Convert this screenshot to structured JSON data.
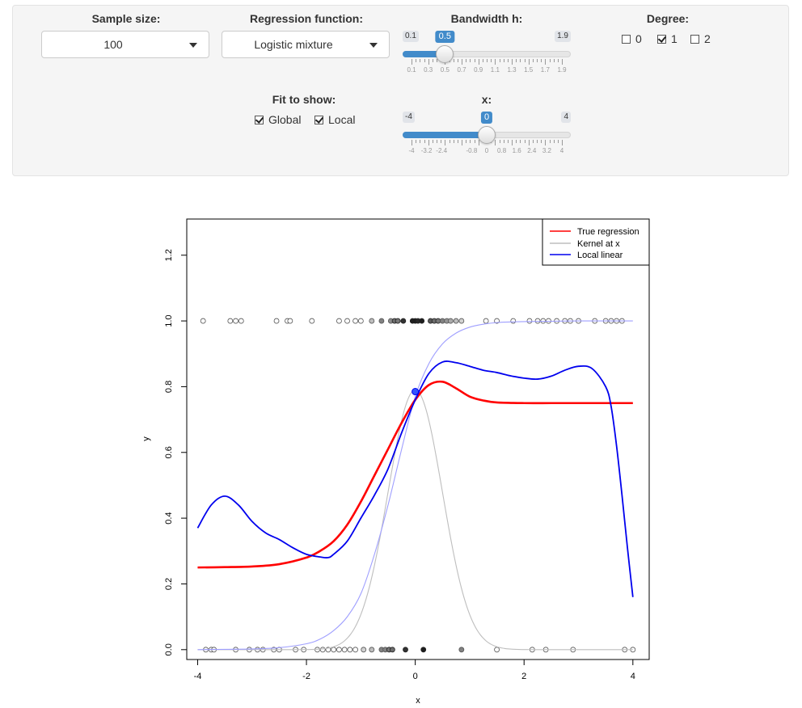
{
  "controls": {
    "sample_size": {
      "label": "Sample size:",
      "value": "100"
    },
    "regression_function": {
      "label": "Regression function:",
      "value": "Logistic mixture"
    },
    "bandwidth": {
      "label": "Bandwidth h:",
      "min": 0.1,
      "max": 1.9,
      "value": 0.5,
      "min_label": "0.1",
      "max_label": "1.9",
      "value_label": "0.5",
      "tick_labels": [
        "0.1",
        "0.3",
        "0.5",
        "0.7",
        "0.9",
        "1.1",
        "1.3",
        "1.5",
        "1.7",
        "1.9"
      ]
    },
    "degree": {
      "label": "Degree:",
      "options": [
        {
          "label": "0",
          "checked": false
        },
        {
          "label": "1",
          "checked": true
        },
        {
          "label": "2",
          "checked": false
        }
      ]
    },
    "fit_to_show": {
      "label": "Fit to show:",
      "options": [
        {
          "label": "Global",
          "checked": true
        },
        {
          "label": "Local",
          "checked": true
        }
      ]
    },
    "x_slider": {
      "label": "x:",
      "min": -4,
      "max": 4,
      "value": 0,
      "min_label": "-4",
      "max_label": "4",
      "value_label": "0",
      "tick_labels": [
        "-4",
        "-3.2",
        "-2.4",
        "-0.8",
        "0",
        "0.8",
        "1.6",
        "2.4",
        "3.2",
        "4"
      ]
    }
  },
  "chart_data": {
    "type": "line",
    "xlabel": "x",
    "ylabel": "y",
    "xlim": [
      -4.2,
      4.3
    ],
    "ylim": [
      -0.03,
      1.31
    ],
    "xticks": [
      "-4",
      "-2",
      "0",
      "2",
      "4"
    ],
    "yticks": [
      "0.0",
      "0.2",
      "0.4",
      "0.6",
      "0.8",
      "1.0",
      "1.2"
    ],
    "legend": {
      "position": "top-right",
      "entries": [
        {
          "label": "True regression",
          "color": "#ff0000"
        },
        {
          "label": "Kernel at x",
          "color": "#bebebe"
        },
        {
          "label": "Local linear",
          "color": "#0000ee"
        }
      ]
    },
    "series": [
      {
        "name": "True regression",
        "color": "#ff0000",
        "x": [
          -4,
          -3.5,
          -3,
          -2.5,
          -2,
          -1.75,
          -1.5,
          -1.25,
          -1,
          -0.75,
          -0.5,
          -0.25,
          0,
          0.25,
          0.5,
          0.75,
          1,
          1.25,
          1.5,
          2,
          2.5,
          3,
          3.5,
          4
        ],
        "y": [
          0.25,
          0.251,
          0.253,
          0.26,
          0.28,
          0.3,
          0.33,
          0.38,
          0.45,
          0.53,
          0.61,
          0.69,
          0.76,
          0.805,
          0.815,
          0.795,
          0.77,
          0.758,
          0.752,
          0.75,
          0.75,
          0.75,
          0.75,
          0.75
        ]
      },
      {
        "name": "Local linear",
        "color": "#0000ee",
        "x": [
          -4,
          -3.75,
          -3.5,
          -3.25,
          -3,
          -2.75,
          -2.5,
          -2.25,
          -2,
          -1.75,
          -1.6,
          -1.5,
          -1.25,
          -1,
          -0.75,
          -0.5,
          -0.25,
          0,
          0.25,
          0.5,
          0.75,
          1,
          1.25,
          1.5,
          1.75,
          2,
          2.25,
          2.5,
          2.75,
          3,
          3.25,
          3.5,
          3.6,
          3.7,
          3.8,
          3.9,
          4
        ],
        "y": [
          0.37,
          0.44,
          0.467,
          0.44,
          0.39,
          0.355,
          0.335,
          0.31,
          0.29,
          0.282,
          0.28,
          0.29,
          0.33,
          0.4,
          0.47,
          0.55,
          0.66,
          0.76,
          0.84,
          0.875,
          0.873,
          0.862,
          0.85,
          0.843,
          0.833,
          0.826,
          0.823,
          0.832,
          0.85,
          0.862,
          0.855,
          0.8,
          0.74,
          0.62,
          0.47,
          0.31,
          0.16
        ]
      },
      {
        "name": "Global logistic",
        "color": "#9f9fff",
        "x": [
          -4,
          -3.5,
          -3,
          -2.5,
          -2,
          -1.75,
          -1.5,
          -1.25,
          -1,
          -0.75,
          -0.5,
          -0.25,
          0,
          0.25,
          0.5,
          0.75,
          1,
          1.25,
          1.5,
          2,
          2.5,
          3,
          3.5,
          4
        ],
        "y": [
          0.0,
          0.001,
          0.002,
          0.006,
          0.018,
          0.032,
          0.058,
          0.1,
          0.17,
          0.29,
          0.44,
          0.61,
          0.77,
          0.87,
          0.93,
          0.963,
          0.981,
          0.99,
          0.995,
          0.998,
          0.999,
          1.0,
          1.0,
          1.0
        ]
      },
      {
        "name": "Kernel at x",
        "color": "#bebebe",
        "type": "gaussian",
        "center": 0,
        "bandwidth": 0.5,
        "peak": 0.79
      }
    ],
    "current_point": {
      "x": 0,
      "y": 0.785
    },
    "points_y1": [
      {
        "x": -3.9,
        "g": 0
      },
      {
        "x": -3.4,
        "g": 0
      },
      {
        "x": -3.3,
        "g": 0
      },
      {
        "x": -3.2,
        "g": 0
      },
      {
        "x": -2.55,
        "g": 0
      },
      {
        "x": -2.35,
        "g": 0
      },
      {
        "x": -2.3,
        "g": 0
      },
      {
        "x": -1.9,
        "g": 0
      },
      {
        "x": -1.4,
        "g": 0
      },
      {
        "x": -1.25,
        "g": 0
      },
      {
        "x": -1.1,
        "g": 0
      },
      {
        "x": -1.0,
        "g": 0
      },
      {
        "x": -0.8,
        "g": 0.2
      },
      {
        "x": -0.62,
        "g": 0.5
      },
      {
        "x": -0.45,
        "g": 0.45
      },
      {
        "x": -0.38,
        "g": 0.6
      },
      {
        "x": -0.32,
        "g": 0.55
      },
      {
        "x": -0.22,
        "g": 0.9
      },
      {
        "x": -0.05,
        "g": 1
      },
      {
        "x": 0,
        "g": 1
      },
      {
        "x": 0.05,
        "g": 0.95
      },
      {
        "x": 0.12,
        "g": 1
      },
      {
        "x": 0.28,
        "g": 0.7
      },
      {
        "x": 0.35,
        "g": 0.6
      },
      {
        "x": 0.42,
        "g": 0.55
      },
      {
        "x": 0.5,
        "g": 0.5
      },
      {
        "x": 0.58,
        "g": 0.4
      },
      {
        "x": 0.65,
        "g": 0.3
      },
      {
        "x": 0.75,
        "g": 0.2
      },
      {
        "x": 0.85,
        "g": 0.1
      },
      {
        "x": 1.3,
        "g": 0
      },
      {
        "x": 1.5,
        "g": 0
      },
      {
        "x": 1.8,
        "g": 0
      },
      {
        "x": 2.1,
        "g": 0
      },
      {
        "x": 2.25,
        "g": 0
      },
      {
        "x": 2.35,
        "g": 0
      },
      {
        "x": 2.45,
        "g": 0
      },
      {
        "x": 2.6,
        "g": 0
      },
      {
        "x": 2.75,
        "g": 0
      },
      {
        "x": 2.85,
        "g": 0
      },
      {
        "x": 3.0,
        "g": 0
      },
      {
        "x": 3.3,
        "g": 0
      },
      {
        "x": 3.5,
        "g": 0
      },
      {
        "x": 3.6,
        "g": 0
      },
      {
        "x": 3.7,
        "g": 0
      },
      {
        "x": 3.8,
        "g": 0
      }
    ],
    "points_y0": [
      {
        "x": -3.85,
        "g": 0
      },
      {
        "x": -3.75,
        "g": 0
      },
      {
        "x": -3.7,
        "g": 0
      },
      {
        "x": -3.3,
        "g": 0
      },
      {
        "x": -3.05,
        "g": 0
      },
      {
        "x": -2.9,
        "g": 0
      },
      {
        "x": -2.8,
        "g": 0
      },
      {
        "x": -2.6,
        "g": 0
      },
      {
        "x": -2.5,
        "g": 0
      },
      {
        "x": -2.2,
        "g": 0
      },
      {
        "x": -2.05,
        "g": 0
      },
      {
        "x": -1.8,
        "g": 0
      },
      {
        "x": -1.7,
        "g": 0
      },
      {
        "x": -1.6,
        "g": 0
      },
      {
        "x": -1.5,
        "g": 0
      },
      {
        "x": -1.4,
        "g": 0
      },
      {
        "x": -1.3,
        "g": 0
      },
      {
        "x": -1.2,
        "g": 0
      },
      {
        "x": -1.1,
        "g": 0
      },
      {
        "x": -0.95,
        "g": 0.1
      },
      {
        "x": -0.8,
        "g": 0.2
      },
      {
        "x": -0.62,
        "g": 0.5
      },
      {
        "x": -0.55,
        "g": 0.5
      },
      {
        "x": -0.48,
        "g": 0.55
      },
      {
        "x": -0.42,
        "g": 0.6
      },
      {
        "x": -0.18,
        "g": 0.9
      },
      {
        "x": 0.15,
        "g": 1
      },
      {
        "x": 0.85,
        "g": 0.5
      },
      {
        "x": 1.5,
        "g": 0
      },
      {
        "x": 2.15,
        "g": 0
      },
      {
        "x": 2.4,
        "g": 0
      },
      {
        "x": 2.9,
        "g": 0
      },
      {
        "x": 3.85,
        "g": 0
      },
      {
        "x": 4.0,
        "g": 0
      }
    ]
  }
}
